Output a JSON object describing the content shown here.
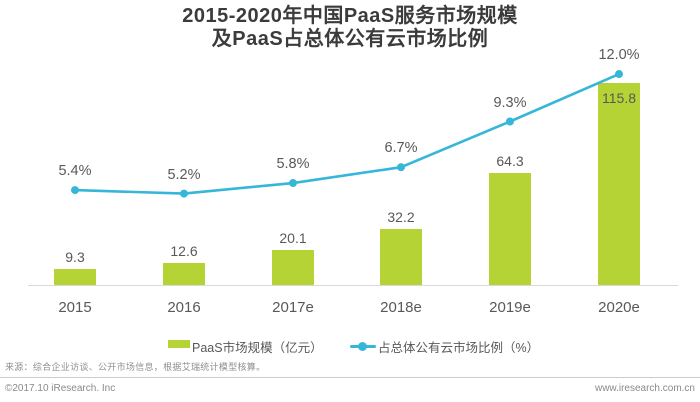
{
  "title": {
    "line1": "2015-2020年中国PaaS服务市场规模",
    "line2": "及PaaS占总体公有云市场比例"
  },
  "chart_data": {
    "type": "bar+line combo",
    "categories": [
      "2015",
      "2016",
      "2017e",
      "2018e",
      "2019e",
      "2020e"
    ],
    "series": [
      {
        "name": "PaaS市场规模（亿元）",
        "type": "bar",
        "values": [
          9.3,
          12.6,
          20.1,
          32.2,
          64.3,
          115.8
        ],
        "labels": [
          "9.3",
          "12.6",
          "20.1",
          "32.2",
          "64.3",
          "115.8"
        ],
        "color": "#b5d335"
      },
      {
        "name": "占总体公有云市场比例（%）",
        "type": "line",
        "values": [
          5.4,
          5.2,
          5.8,
          6.7,
          9.3,
          12.0
        ],
        "labels": [
          "5.4%",
          "5.2%",
          "5.8%",
          "6.7%",
          "9.3%",
          "12.0%"
        ],
        "color": "#36b6d9"
      }
    ],
    "title": "2015-2020年中国PaaS服务市场规模及PaaS占总体公有云市场比例",
    "xlabel": "",
    "ylabel": "",
    "grid": false,
    "legend_position": "bottom"
  },
  "legend": {
    "bar_label": "PaaS市场规模（亿元）",
    "line_label": "占总体公有云市场比例（%）"
  },
  "footer": {
    "source_note": "来源：综合企业访谈、公开市场信息，根据艾瑞统计模型核算。",
    "copyright": "©2017.10 iResearch. Inc",
    "website": "www.iresearch.com.cn"
  },
  "colors": {
    "bar": "#b5d335",
    "line": "#36b6d9",
    "title_text": "#3b3b3b",
    "label_text": "#595959",
    "axis_line": "#d9d9d9"
  }
}
